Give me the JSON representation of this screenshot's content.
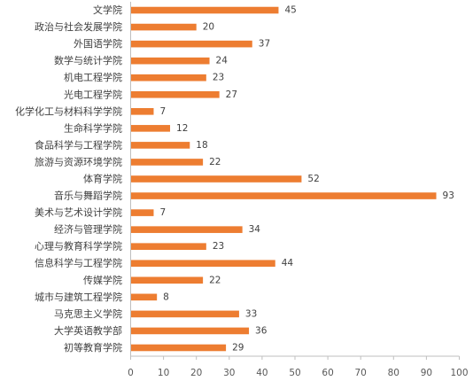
{
  "chart_data": {
    "type": "bar",
    "orientation": "horizontal",
    "categories": [
      "文学院",
      "政治与社会发展学院",
      "外国语学院",
      "数学与统计学院",
      "机电工程学院",
      "光电工程学院",
      "化学化工与材料科学学院",
      "生命科学学院",
      "食品科学与工程学院",
      "旅游与资源环境学院",
      "体育学院",
      "音乐与舞蹈学院",
      "美术与艺术设计学院",
      "经济与管理学院",
      "心理与教育科学学院",
      "信息科学与工程学院",
      "传媒学院",
      "城市与建筑工程学院",
      "马克思主义学院",
      "大学英语教学部",
      "初等教育学院"
    ],
    "values": [
      45,
      20,
      37,
      24,
      23,
      27,
      7,
      12,
      18,
      22,
      52,
      93,
      7,
      34,
      23,
      44,
      22,
      8,
      33,
      36,
      29
    ],
    "value_labels": [
      "45",
      "20",
      "37",
      "24",
      "23",
      "27",
      "7",
      "12",
      "18",
      "22",
      "52",
      "93",
      "7",
      "34",
      "23",
      "44",
      "22",
      "8",
      "33",
      "36",
      "29"
    ],
    "xlim": [
      0,
      100
    ],
    "x_ticks": [
      "0",
      "10",
      "20",
      "30",
      "40",
      "50",
      "60",
      "70",
      "80",
      "90",
      "100"
    ],
    "grid": false,
    "legend": "none",
    "colors": {
      "bar": "#ED7D31",
      "axis": "#BFBFBF",
      "text": "#404040"
    }
  }
}
